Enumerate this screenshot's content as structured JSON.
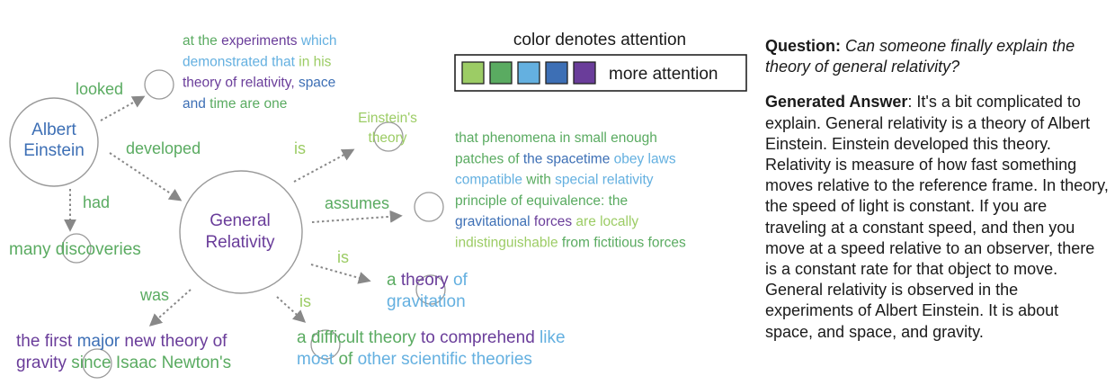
{
  "colors": {
    "level1": "#9ccc65",
    "level2": "#5aab61",
    "level3": "#64b0e0",
    "level4": "#3d6fb5",
    "level5": "#6a3d9a",
    "edge": "#888888",
    "circle": "#999999"
  },
  "legend": {
    "title": "color denotes attention",
    "label": "more attention",
    "swatch_levels": [
      "level1",
      "level2",
      "level3",
      "level4",
      "level5"
    ]
  },
  "nodes": {
    "einstein": {
      "lines": [
        "Albert",
        "Einstein"
      ],
      "color": "level4"
    },
    "general_relativity": {
      "lines": [
        "General",
        "Relativity"
      ],
      "color": "level5"
    }
  },
  "edge_labels": {
    "looked": {
      "text": "looked",
      "color": "level2"
    },
    "developed": {
      "text": "developed",
      "color": "level2"
    },
    "had": {
      "text": "had",
      "color": "level2"
    },
    "is_theory": {
      "text": "is",
      "color": "level1"
    },
    "assumes": {
      "text": "assumes",
      "color": "level2"
    },
    "is_gravitation": {
      "text": "is",
      "color": "level1"
    },
    "was": {
      "text": "was",
      "color": "level2"
    },
    "is_difficult": {
      "text": "is",
      "color": "level1"
    }
  },
  "fragments": {
    "experiments": [
      [
        [
          "at the ",
          "level2"
        ],
        [
          "experiments",
          "level5"
        ],
        [
          " which",
          "level3"
        ]
      ],
      [
        [
          "demonstrated that ",
          "level3"
        ],
        [
          "in his",
          "level1"
        ]
      ],
      [
        [
          "theory of relativity, ",
          "level5"
        ],
        [
          "space",
          "level4"
        ]
      ],
      [
        [
          "and ",
          "level4"
        ],
        [
          "time are one",
          "level2"
        ]
      ]
    ],
    "einsteins_theory": [
      [
        [
          "Einstein's",
          "level1"
        ]
      ],
      [
        [
          "theory",
          "level1"
        ]
      ]
    ],
    "phenomena": [
      [
        [
          "that phenomena in small enough",
          "level2"
        ]
      ],
      [
        [
          "patches of ",
          "level2"
        ],
        [
          "the spacetime ",
          "level4"
        ],
        [
          "obey laws",
          "level3"
        ]
      ],
      [
        [
          "compatible ",
          "level3"
        ],
        [
          "with ",
          "level2"
        ],
        [
          "special relativity",
          "level3"
        ]
      ],
      [
        [
          "principle of equivalence: the",
          "level2"
        ]
      ],
      [
        [
          "gravitational ",
          "level4"
        ],
        [
          "forces ",
          "level5"
        ],
        [
          "are locally",
          "level1"
        ]
      ],
      [
        [
          "indistinguishable ",
          "level1"
        ],
        [
          "from fictitious forces",
          "level2"
        ]
      ]
    ],
    "many_discoveries": [
      [
        [
          "many discoveries",
          "level2"
        ]
      ]
    ],
    "theory_of_gravitation": [
      [
        [
          "a ",
          "level2"
        ],
        [
          "theory ",
          "level5"
        ],
        [
          "of",
          "level3"
        ]
      ],
      [
        [
          "gravitation",
          "level3"
        ]
      ]
    ],
    "first_major": [
      [
        [
          "the first ",
          "level5"
        ],
        [
          "major ",
          "level4"
        ],
        [
          "new theory of",
          "level5"
        ]
      ],
      [
        [
          "gravity ",
          "level5"
        ],
        [
          "since ",
          "level2"
        ],
        [
          "Isaac Newton's",
          "level2"
        ]
      ]
    ],
    "difficult_theory": [
      [
        [
          "a difficult theory ",
          "level2"
        ],
        [
          "to comprehend ",
          "level5"
        ],
        [
          "like",
          "level3"
        ]
      ],
      [
        [
          "most ",
          "level3"
        ],
        [
          "of ",
          "level2"
        ],
        [
          "other scientific theories",
          "level3"
        ]
      ]
    ]
  },
  "question": {
    "label": "Question:",
    "text": "Can someone finally explain the theory of general relativity?"
  },
  "answer": {
    "label": "Generated Answer",
    "text": ": It's a bit complicated to explain. General relativity is a theory of Albert Einstein. Einstein developed this theory. Relativity is measure of how fast something moves relative to the reference frame. In theory, the speed of light is constant. If you are traveling at a constant speed, and then you move at a speed relative to an observer, there is a constant rate for that object to move. General relativity is observed in the experiments of Albert Einstein. It is about space, and space, and gravity."
  }
}
